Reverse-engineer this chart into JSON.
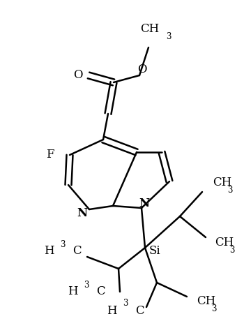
{
  "background_color": "#ffffff",
  "line_color": "#000000",
  "line_width": 1.8,
  "figsize": [
    3.5,
    4.8
  ],
  "dpi": 100,
  "xlim": [
    0,
    350
  ],
  "ylim": [
    0,
    480
  ]
}
